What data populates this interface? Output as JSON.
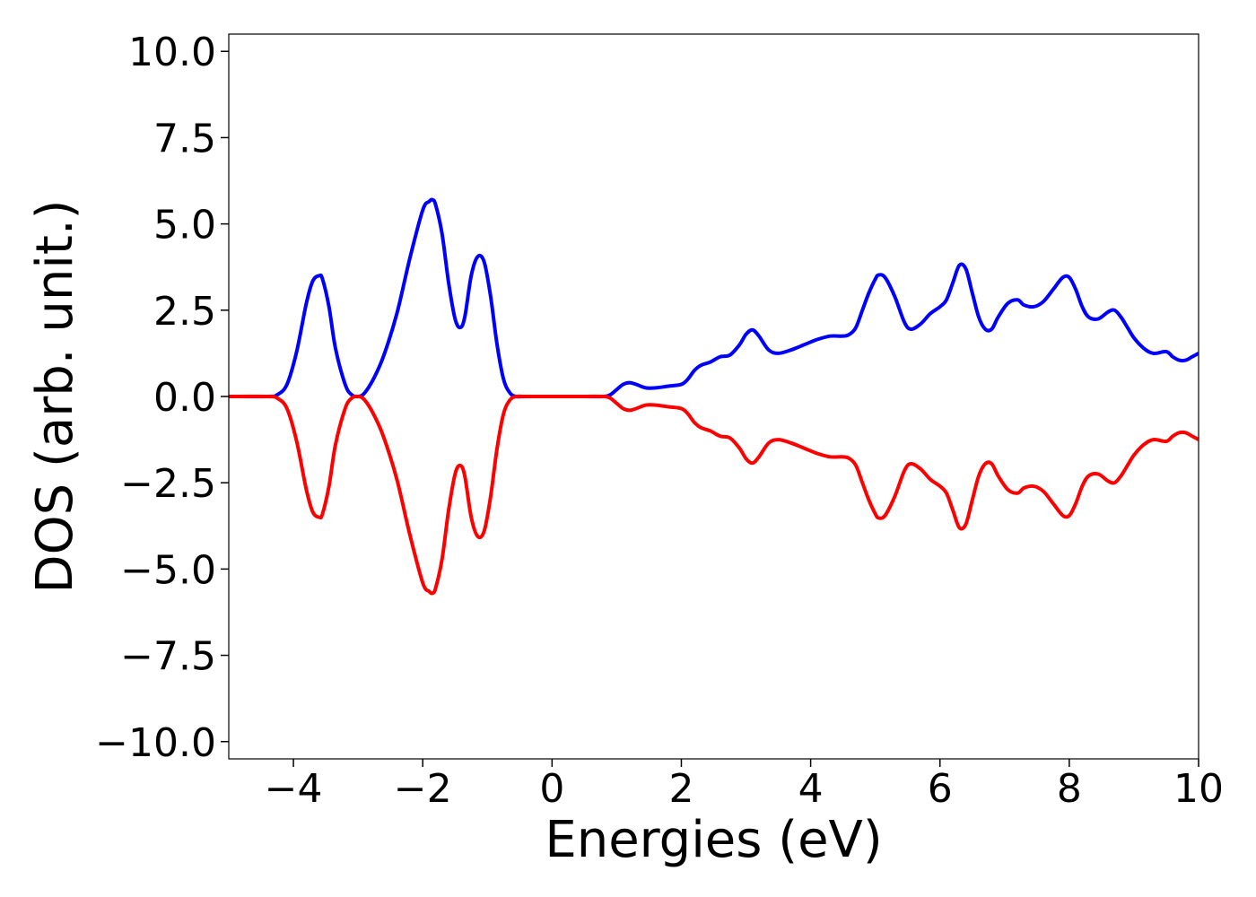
{
  "chart_data": {
    "type": "line",
    "title": "",
    "xlabel": "Energies (eV)",
    "ylabel": "DOS (arb. unit.)",
    "xlim": [
      -5,
      10
    ],
    "ylim": [
      -10.5,
      10.5
    ],
    "xticks": [
      -4,
      -2,
      0,
      2,
      4,
      6,
      8,
      10
    ],
    "xtick_labels": [
      "−4",
      "−2",
      "0",
      "2",
      "4",
      "6",
      "8",
      "10"
    ],
    "yticks": [
      10.0,
      7.5,
      5.0,
      2.5,
      0.0,
      -2.5,
      -5.0,
      -7.5,
      -10.0
    ],
    "ytick_labels": [
      "10.0",
      "7.5",
      "5.0",
      "2.5",
      "0.0",
      "−2.5",
      "−5.0",
      "−7.5",
      "−10.0"
    ],
    "grid": false,
    "legend": "none",
    "series": [
      {
        "color": "#0000ff",
        "x": [
          -5,
          -4.4,
          -4.25,
          -4.1,
          -3.95,
          -3.8,
          -3.7,
          -3.6,
          -3.55,
          -3.45,
          -3.35,
          -3.2,
          -3.1,
          -3.0,
          -2.9,
          -2.75,
          -2.6,
          -2.4,
          -2.2,
          -2.0,
          -1.9,
          -1.85,
          -1.8,
          -1.7,
          -1.6,
          -1.5,
          -1.42,
          -1.35,
          -1.25,
          -1.15,
          -1.05,
          -0.95,
          -0.85,
          -0.75,
          -0.65,
          -0.55,
          -0.4,
          0,
          0.5,
          0.8,
          0.9,
          1.0,
          1.1,
          1.2,
          1.3,
          1.45,
          1.6,
          1.8,
          2.0,
          2.1,
          2.2,
          2.3,
          2.45,
          2.6,
          2.75,
          2.9,
          3.0,
          3.1,
          3.2,
          3.35,
          3.5,
          3.7,
          3.9,
          4.1,
          4.3,
          4.5,
          4.6,
          4.7,
          4.8,
          4.9,
          5.0,
          5.05,
          5.15,
          5.3,
          5.45,
          5.55,
          5.7,
          5.85,
          6.0,
          6.1,
          6.2,
          6.3,
          6.4,
          6.5,
          6.6,
          6.7,
          6.8,
          6.9,
          7.05,
          7.2,
          7.3,
          7.45,
          7.6,
          7.75,
          7.9,
          8.0,
          8.1,
          8.2,
          8.3,
          8.45,
          8.6,
          8.7,
          8.8,
          8.9,
          9.0,
          9.15,
          9.3,
          9.5,
          9.6,
          9.7,
          9.8,
          9.9,
          10
        ],
        "y": [
          0.0,
          0.0,
          0.05,
          0.35,
          1.3,
          2.7,
          3.35,
          3.5,
          3.4,
          2.6,
          1.4,
          0.35,
          0.05,
          0.0,
          0.1,
          0.55,
          1.2,
          2.4,
          4.0,
          5.4,
          5.65,
          5.7,
          5.55,
          4.7,
          3.3,
          2.25,
          2.0,
          2.3,
          3.5,
          4.05,
          3.9,
          2.9,
          1.5,
          0.5,
          0.1,
          0.0,
          0.0,
          0.0,
          0.0,
          0.0,
          0.05,
          0.2,
          0.35,
          0.4,
          0.35,
          0.25,
          0.25,
          0.3,
          0.35,
          0.5,
          0.75,
          0.9,
          1.0,
          1.15,
          1.2,
          1.5,
          1.8,
          1.93,
          1.75,
          1.35,
          1.25,
          1.35,
          1.5,
          1.65,
          1.75,
          1.75,
          1.8,
          2.0,
          2.5,
          3.0,
          3.4,
          3.52,
          3.45,
          2.9,
          2.15,
          1.95,
          2.1,
          2.4,
          2.6,
          2.8,
          3.3,
          3.8,
          3.7,
          3.0,
          2.3,
          1.95,
          1.95,
          2.3,
          2.7,
          2.8,
          2.65,
          2.6,
          2.75,
          3.1,
          3.45,
          3.45,
          3.1,
          2.6,
          2.3,
          2.25,
          2.45,
          2.5,
          2.3,
          2.0,
          1.7,
          1.4,
          1.25,
          1.3,
          1.15,
          1.05,
          1.05,
          1.15,
          1.25
        ]
      },
      {
        "color": "#ff0000",
        "x": [
          -5,
          -4.4,
          -4.25,
          -4.1,
          -3.95,
          -3.8,
          -3.7,
          -3.6,
          -3.55,
          -3.45,
          -3.35,
          -3.2,
          -3.1,
          -3.0,
          -2.9,
          -2.75,
          -2.6,
          -2.4,
          -2.2,
          -2.0,
          -1.9,
          -1.85,
          -1.8,
          -1.7,
          -1.6,
          -1.5,
          -1.42,
          -1.35,
          -1.25,
          -1.15,
          -1.05,
          -0.95,
          -0.85,
          -0.75,
          -0.65,
          -0.55,
          -0.4,
          0,
          0.5,
          0.8,
          0.9,
          1.0,
          1.1,
          1.2,
          1.3,
          1.45,
          1.6,
          1.8,
          2.0,
          2.1,
          2.2,
          2.3,
          2.45,
          2.6,
          2.75,
          2.9,
          3.0,
          3.1,
          3.2,
          3.35,
          3.5,
          3.7,
          3.9,
          4.1,
          4.3,
          4.5,
          4.6,
          4.7,
          4.8,
          4.9,
          5.0,
          5.05,
          5.15,
          5.3,
          5.45,
          5.55,
          5.7,
          5.85,
          6.0,
          6.1,
          6.2,
          6.3,
          6.4,
          6.5,
          6.6,
          6.7,
          6.8,
          6.9,
          7.05,
          7.2,
          7.3,
          7.45,
          7.6,
          7.75,
          7.9,
          8.0,
          8.1,
          8.2,
          8.3,
          8.45,
          8.6,
          8.7,
          8.8,
          8.9,
          9.0,
          9.15,
          9.3,
          9.5,
          9.6,
          9.7,
          9.8,
          9.9,
          10
        ],
        "y": [
          0.0,
          0.0,
          -0.05,
          -0.35,
          -1.3,
          -2.7,
          -3.35,
          -3.5,
          -3.4,
          -2.6,
          -1.4,
          -0.35,
          -0.05,
          0.0,
          -0.1,
          -0.55,
          -1.2,
          -2.4,
          -4.0,
          -5.4,
          -5.65,
          -5.7,
          -5.55,
          -4.7,
          -3.3,
          -2.25,
          -2.0,
          -2.3,
          -3.5,
          -4.05,
          -3.9,
          -2.9,
          -1.5,
          -0.5,
          -0.1,
          0.0,
          0.0,
          0.0,
          0.0,
          0.0,
          -0.05,
          -0.2,
          -0.35,
          -0.4,
          -0.35,
          -0.25,
          -0.25,
          -0.3,
          -0.35,
          -0.5,
          -0.75,
          -0.9,
          -1.0,
          -1.15,
          -1.2,
          -1.5,
          -1.8,
          -1.93,
          -1.75,
          -1.35,
          -1.25,
          -1.35,
          -1.5,
          -1.65,
          -1.75,
          -1.75,
          -1.8,
          -2.0,
          -2.5,
          -3.0,
          -3.4,
          -3.52,
          -3.45,
          -2.9,
          -2.15,
          -1.95,
          -2.1,
          -2.4,
          -2.6,
          -2.8,
          -3.3,
          -3.8,
          -3.7,
          -3.0,
          -2.3,
          -1.95,
          -1.95,
          -2.3,
          -2.7,
          -2.8,
          -2.65,
          -2.6,
          -2.75,
          -3.1,
          -3.45,
          -3.45,
          -3.1,
          -2.6,
          -2.3,
          -2.25,
          -2.45,
          -2.5,
          -2.3,
          -2.0,
          -1.7,
          -1.4,
          -1.25,
          -1.3,
          -1.15,
          -1.05,
          -1.05,
          -1.15,
          -1.25
        ]
      }
    ]
  }
}
